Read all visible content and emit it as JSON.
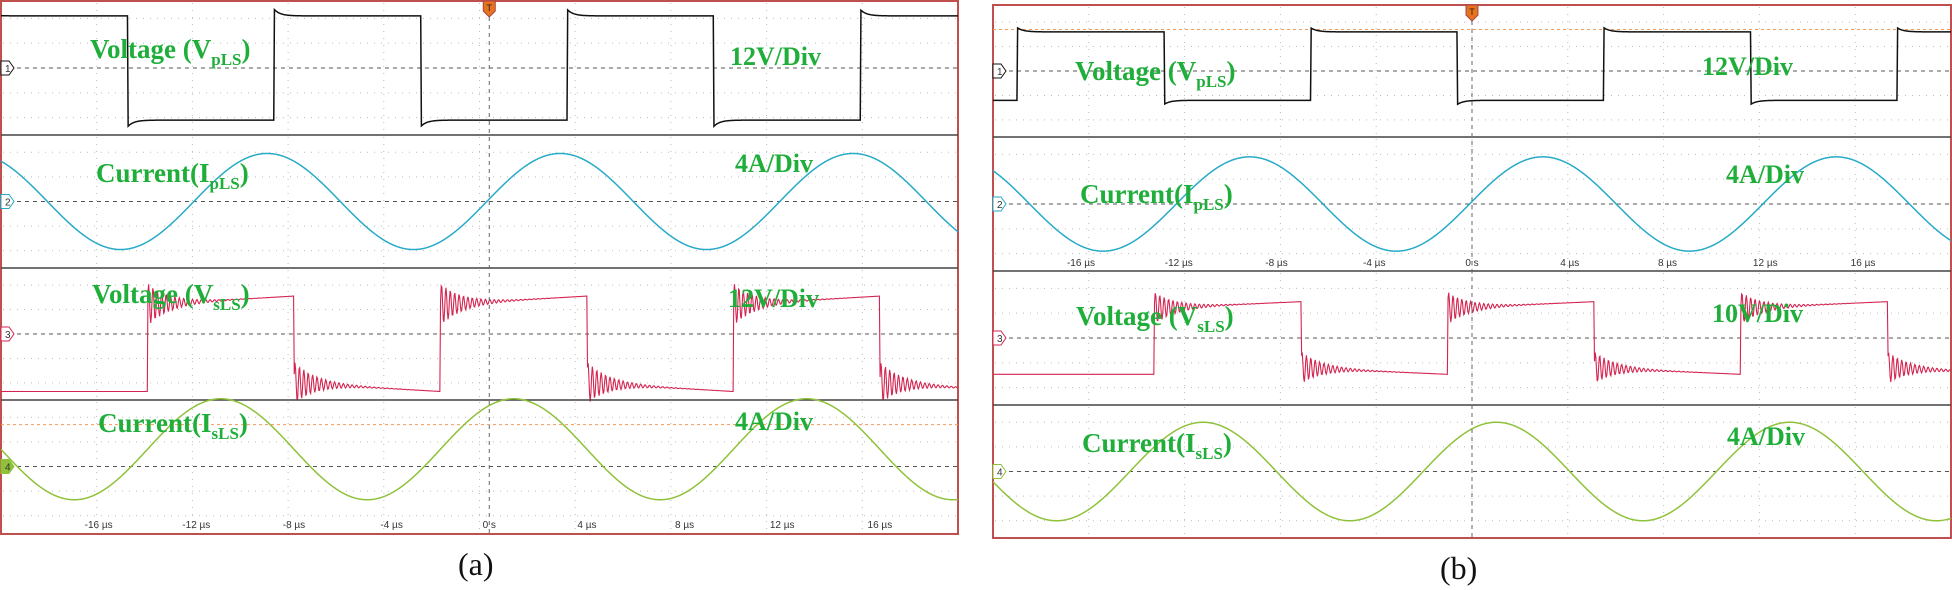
{
  "captions": {
    "a": "(a)",
    "b": "(b)"
  },
  "colors": {
    "frame": "#c0504d",
    "label": "#1fae3a",
    "voltage_primary": "#111111",
    "current_primary": "#27aac8",
    "voltage_secondary": "#d42450",
    "current_secondary": "#8fc23a",
    "ref_dashed": "#f39a5a"
  },
  "chart_data": [
    {
      "type": "line",
      "panel": "a",
      "x_axis": {
        "unit": "µs",
        "ticks": [
          -16,
          -12,
          -8,
          -4,
          0,
          4,
          8,
          12,
          16
        ],
        "tick_labels": [
          "-16 µs",
          "-12 µs",
          "-8 µs",
          "-4 µs",
          "0 s",
          "4 µs",
          "8 µs",
          "12 µs",
          "16 µs"
        ],
        "range": [
          -20,
          19.2
        ]
      },
      "trigger_marker": "T",
      "grid": true,
      "series": [
        {
          "name": "Voltage (VpLS)",
          "label_main": "Voltage (V",
          "label_sub": "pLS",
          "label_end": ")",
          "scale": "12V/Div",
          "channel": "1",
          "kind": "square",
          "amplitude_div": 2.1,
          "period_us": 12,
          "rising_edges_us": [
            -20.8,
            -8.8,
            3.2,
            15.2
          ],
          "falling_edges_us": [
            -14.8,
            -2.8,
            9.2
          ],
          "offset_div": 0,
          "ref_level": false
        },
        {
          "name": "Current(IpLS)",
          "label_main": "Current(I",
          "label_sub": "pLS",
          "label_end": ")",
          "scale": "4A/Div",
          "channel": "2",
          "kind": "sine",
          "amplitude_div": 1.95,
          "period_us": 12,
          "peak_at_us": 2.9,
          "offset_div": 0,
          "ref_level": false
        },
        {
          "name": "Voltage (VsLS)",
          "label_main": "Voltage (V",
          "label_sub": "sLS",
          "label_end": ")",
          "scale": "12V/Div",
          "channel": "3",
          "kind": "ringing-square",
          "amplitude_div": 1.6,
          "period_us": 12,
          "rising_edges_us": [
            -14,
            -2,
            10
          ],
          "falling_edges_us": [
            -8,
            4,
            16
          ],
          "offset_div": -0.4,
          "ref_level": false
        },
        {
          "name": "Current(IsLS)",
          "label_main": "Current(I",
          "label_sub": "sLS",
          "label_end": ")",
          "scale": "4A/Div",
          "channel": "4",
          "kind": "sine",
          "amplitude_div": 2.05,
          "period_us": 12,
          "peak_at_us": 1.0,
          "offset_div": 0.7,
          "ref_level": true
        }
      ]
    },
    {
      "type": "line",
      "panel": "b",
      "x_axis": {
        "unit": "µs",
        "ticks": [
          -16,
          -12,
          -8,
          -4,
          0,
          4,
          8,
          12,
          16
        ],
        "tick_labels": [
          "-16 µs",
          "-12 µs",
          "-8 µs",
          "-4 µs",
          "0 s",
          "4 µs",
          "8 µs",
          "12 µs",
          "16 µs"
        ],
        "range": [
          -19.6,
          19.6
        ]
      },
      "trigger_marker": "T",
      "grid": true,
      "series": [
        {
          "name": "Voltage (VpLS)",
          "label_main": "Voltage (V",
          "label_sub": "pLS",
          "label_end": ")",
          "scale": "12V/Div",
          "channel": "1",
          "kind": "square",
          "amplitude_div": 1.4,
          "period_us": 12,
          "rising_edges_us": [
            -18.6,
            -6.6,
            5.4,
            17.4
          ],
          "falling_edges_us": [
            -12.6,
            -0.6,
            11.4
          ],
          "offset_div": 0.2,
          "ref_level": true
        },
        {
          "name": "Current(IpLS)",
          "label_main": "Current(I",
          "label_sub": "pLS",
          "label_end": ")",
          "scale": "4A/Div",
          "channel": "2",
          "kind": "sine",
          "amplitude_div": 1.9,
          "period_us": 12,
          "peak_at_us": 2.9,
          "offset_div": 0,
          "ref_level": false
        },
        {
          "name": "Voltage (VsLS)",
          "label_main": "Voltage (V",
          "label_sub": "sLS",
          "label_end": ")",
          "scale": "10V/Div",
          "channel": "3",
          "kind": "ringing-square",
          "amplitude_div": 1.2,
          "period_us": 12,
          "rising_edges_us": [
            -13,
            -1,
            11
          ],
          "falling_edges_us": [
            -7,
            5,
            17
          ],
          "offset_div": 0,
          "ref_level": false
        },
        {
          "name": "Current(IsLS)",
          "label_main": "Current(I",
          "label_sub": "sLS",
          "label_end": ")",
          "scale": "4A/Div",
          "channel": "4",
          "kind": "sine",
          "amplitude_div": 2.0,
          "period_us": 12,
          "peak_at_us": 1.0,
          "offset_div": 0,
          "ref_level": false
        }
      ]
    }
  ]
}
